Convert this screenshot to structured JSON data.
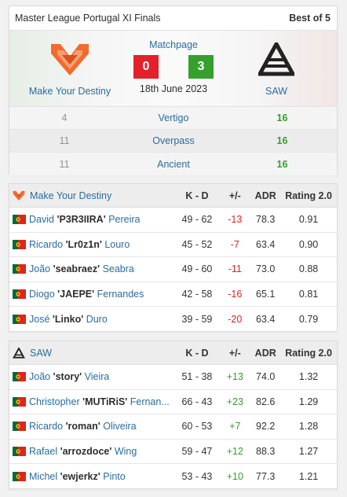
{
  "match": {
    "event": "Master League Portugal XI Finals",
    "format": "Best of 5",
    "matchpage_label": "Matchpage",
    "date": "18th June 2023",
    "team1": {
      "name": "Make Your Destiny",
      "score": "0",
      "logo_color": "#f26b2d"
    },
    "team2": {
      "name": "SAW",
      "score": "3",
      "logo_color": "#222222"
    },
    "maps": [
      {
        "name": "Vertigo",
        "team1_score": "4",
        "team2_score": "16"
      },
      {
        "name": "Overpass",
        "team1_score": "11",
        "team2_score": "16"
      },
      {
        "name": "Ancient",
        "team1_score": "11",
        "team2_score": "16"
      }
    ],
    "colors": {
      "loss": "#e2212b",
      "win": "#35a02c",
      "link": "#2a6d9e"
    }
  },
  "stats_headers": {
    "kd": "K - D",
    "plus_minus": "+/-",
    "adr": "ADR",
    "rating": "Rating 2.0"
  },
  "team1_stats": {
    "team_name": "Make Your Destiny",
    "players": [
      {
        "first": "David",
        "nick": "P3R3IIRA",
        "last": "Pereira",
        "kd": "49 - 62",
        "pm": "-13",
        "adr": "78.3",
        "rating": "0.91",
        "flag": "portugal-flag"
      },
      {
        "first": "Ricardo",
        "nick": "Lr0z1n",
        "last": "Louro",
        "kd": "45 - 52",
        "pm": "-7",
        "adr": "63.4",
        "rating": "0.90",
        "flag": "portugal-flag"
      },
      {
        "first": "João",
        "nick": "seabraez",
        "last": "Seabra",
        "kd": "49 - 60",
        "pm": "-11",
        "adr": "73.0",
        "rating": "0.88",
        "flag": "portugal-flag"
      },
      {
        "first": "Diogo",
        "nick": "JAEPE",
        "last": "Fernandes",
        "kd": "42 - 58",
        "pm": "-16",
        "adr": "65.1",
        "rating": "0.81",
        "flag": "portugal-flag"
      },
      {
        "first": "José",
        "nick": "Linko",
        "last": "Duro",
        "kd": "39 - 59",
        "pm": "-20",
        "adr": "63.4",
        "rating": "0.79",
        "flag": "portugal-flag"
      }
    ]
  },
  "team2_stats": {
    "team_name": "SAW",
    "players": [
      {
        "first": "João",
        "nick": "story",
        "last": "Vieira",
        "kd": "51 - 38",
        "pm": "+13",
        "adr": "74.0",
        "rating": "1.32",
        "flag": "portugal-flag"
      },
      {
        "first": "Christopher",
        "nick": "MUTiRiS",
        "last": "Fernan...",
        "kd": "66 - 43",
        "pm": "+23",
        "adr": "82.6",
        "rating": "1.29",
        "flag": "portugal-flag"
      },
      {
        "first": "Ricardo",
        "nick": "roman",
        "last": "Oliveira",
        "kd": "60 - 53",
        "pm": "+7",
        "adr": "92.2",
        "rating": "1.28",
        "flag": "portugal-flag"
      },
      {
        "first": "Rafael",
        "nick": "arrozdoce",
        "last": "Wing",
        "kd": "59 - 47",
        "pm": "+12",
        "adr": "88.3",
        "rating": "1.27",
        "flag": "portugal-flag"
      },
      {
        "first": "Michel",
        "nick": "ewjerkz",
        "last": "Pinto",
        "kd": "53 - 43",
        "pm": "+10",
        "adr": "77.3",
        "rating": "1.21",
        "flag": "portugal-flag"
      }
    ]
  }
}
